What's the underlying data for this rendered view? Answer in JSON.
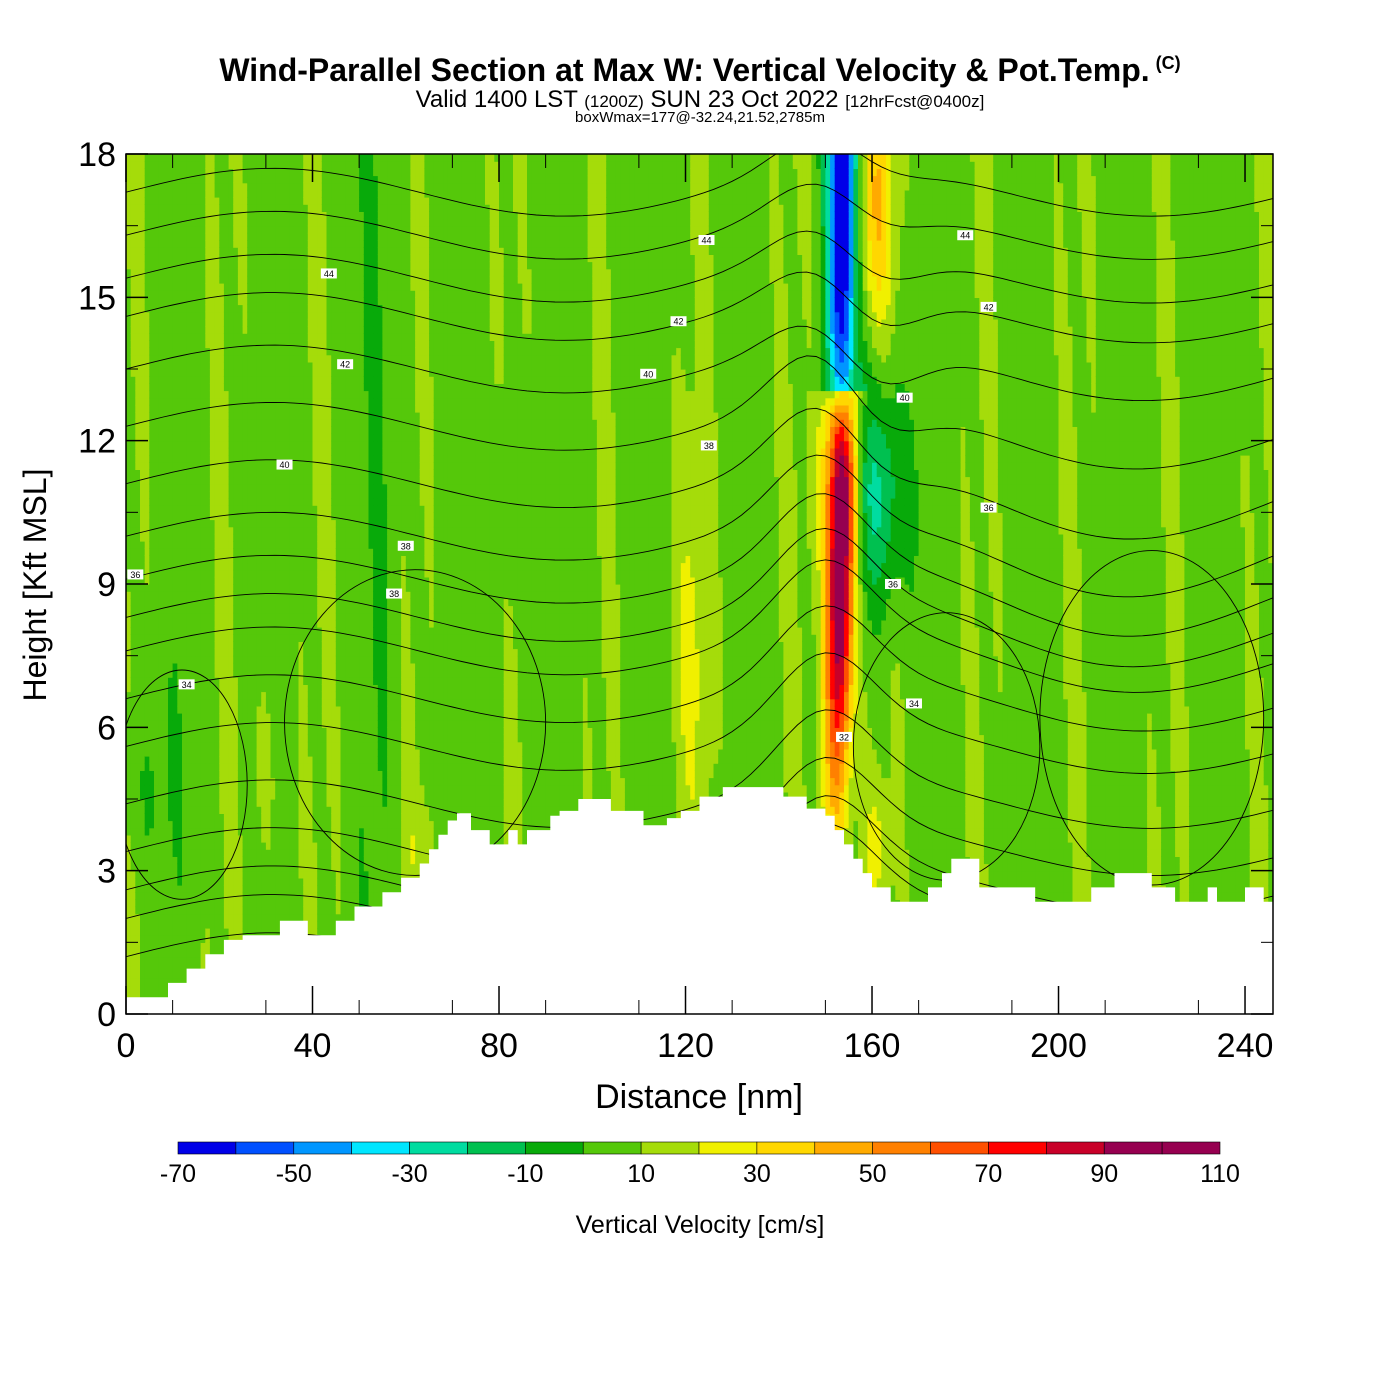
{
  "title": {
    "main": "Wind-Parallel Section at Max W: Vertical Velocity & Pot.Temp.",
    "copyright": "(C)",
    "valid_prefix": "Valid 1400 LST",
    "utc": "(1200Z)",
    "date": "SUN 23 Oct 2022",
    "forecast": "[12hrFcst@0400z]",
    "subtitle": "boxWmax=177@-32.24,21.52,2785m"
  },
  "chart_data": {
    "type": "heatmap",
    "xlabel": "Distance [nm]",
    "ylabel": "Height [Kft MSL]",
    "xlim": [
      0,
      246
    ],
    "ylim": [
      0,
      18
    ],
    "x_ticks": [
      "0",
      "40",
      "80",
      "120",
      "160",
      "200",
      "240"
    ],
    "y_ticks": [
      "0",
      "3",
      "6",
      "9",
      "12",
      "15",
      "18"
    ],
    "colorbar": {
      "label": "Vertical Velocity [cm/s]",
      "tick_labels": [
        "-70",
        "-50",
        "-30",
        "-10",
        "10",
        "30",
        "50",
        "70",
        "90",
        "110"
      ],
      "bounds": [
        -70,
        110
      ],
      "step": 10,
      "colors": [
        "#0000e8",
        "#0050ff",
        "#0096ff",
        "#00e6ff",
        "#00dca0",
        "#00c050",
        "#08aa0a",
        "#55c80a",
        "#a5dc0a",
        "#f0f000",
        "#ffd700",
        "#ffaa00",
        "#ff8000",
        "#ff5000",
        "#ff0000",
        "#c80028",
        "#960050"
      ]
    },
    "terrain_profile": {
      "x": [
        0,
        9,
        13,
        17,
        21,
        25,
        33,
        39,
        45,
        49,
        55,
        59,
        63,
        65,
        67,
        69,
        71,
        74,
        78,
        82,
        84,
        86,
        91,
        93,
        97,
        104,
        111,
        116,
        119,
        123,
        128,
        137,
        141,
        146,
        150,
        152,
        154,
        156,
        158,
        160,
        164,
        172,
        175,
        177,
        183,
        195,
        207,
        212,
        220,
        225,
        232,
        234,
        240,
        244,
        246
      ],
      "height_kft": [
        0.35,
        0.65,
        0.95,
        1.25,
        1.55,
        1.65,
        1.95,
        1.65,
        1.95,
        2.25,
        2.55,
        2.85,
        3.15,
        3.45,
        3.75,
        4.05,
        4.2,
        3.85,
        3.55,
        3.85,
        3.55,
        3.85,
        4.15,
        4.25,
        4.5,
        4.25,
        3.95,
        4.1,
        4.25,
        4.55,
        4.75,
        4.75,
        4.55,
        4.3,
        4.15,
        3.85,
        3.55,
        3.25,
        2.95,
        2.65,
        2.35,
        2.65,
        2.95,
        3.25,
        2.65,
        2.35,
        2.65,
        2.95,
        2.65,
        2.35,
        2.65,
        2.35,
        2.65,
        2.35,
        2.35
      ]
    },
    "features": [
      {
        "name": "updraft core",
        "x": 152.5,
        "y_bottom_kft": 4.8,
        "y_top_kft": 13.5,
        "w_peak_cms": 110
      },
      {
        "name": "downdraft core",
        "x": 153.5,
        "y_bottom_kft": 13,
        "y_top_kft": 18,
        "w_min_cms": -70
      }
    ],
    "contours_pot_temp": {
      "levels": [
        "34",
        "36",
        "38",
        "40",
        "42",
        "44"
      ],
      "labels": [
        {
          "text": "44",
          "x": 43.5,
          "y": 15.5
        },
        {
          "text": "44",
          "x": 124.5,
          "y": 16.2
        },
        {
          "text": "44",
          "x": 180,
          "y": 16.3
        },
        {
          "text": "42",
          "x": 118.5,
          "y": 14.5
        },
        {
          "text": "42",
          "x": 47,
          "y": 13.6
        },
        {
          "text": "42",
          "x": 185,
          "y": 14.8
        },
        {
          "text": "40",
          "x": 112,
          "y": 13.4
        },
        {
          "text": "40",
          "x": 34,
          "y": 11.5
        },
        {
          "text": "40",
          "x": 167,
          "y": 12.9
        },
        {
          "text": "38",
          "x": 125,
          "y": 11.9
        },
        {
          "text": "38",
          "x": 60,
          "y": 9.8
        },
        {
          "text": "38",
          "x": 57.5,
          "y": 8.8
        },
        {
          "text": "36",
          "x": 2,
          "y": 9.2
        },
        {
          "text": "36",
          "x": 185,
          "y": 10.6
        },
        {
          "text": "36",
          "x": 164.5,
          "y": 9
        },
        {
          "text": "34",
          "x": 13,
          "y": 6.9
        },
        {
          "text": "34",
          "x": 169,
          "y": 6.5
        },
        {
          "text": "32",
          "x": 154,
          "y": 5.8
        }
      ]
    }
  }
}
